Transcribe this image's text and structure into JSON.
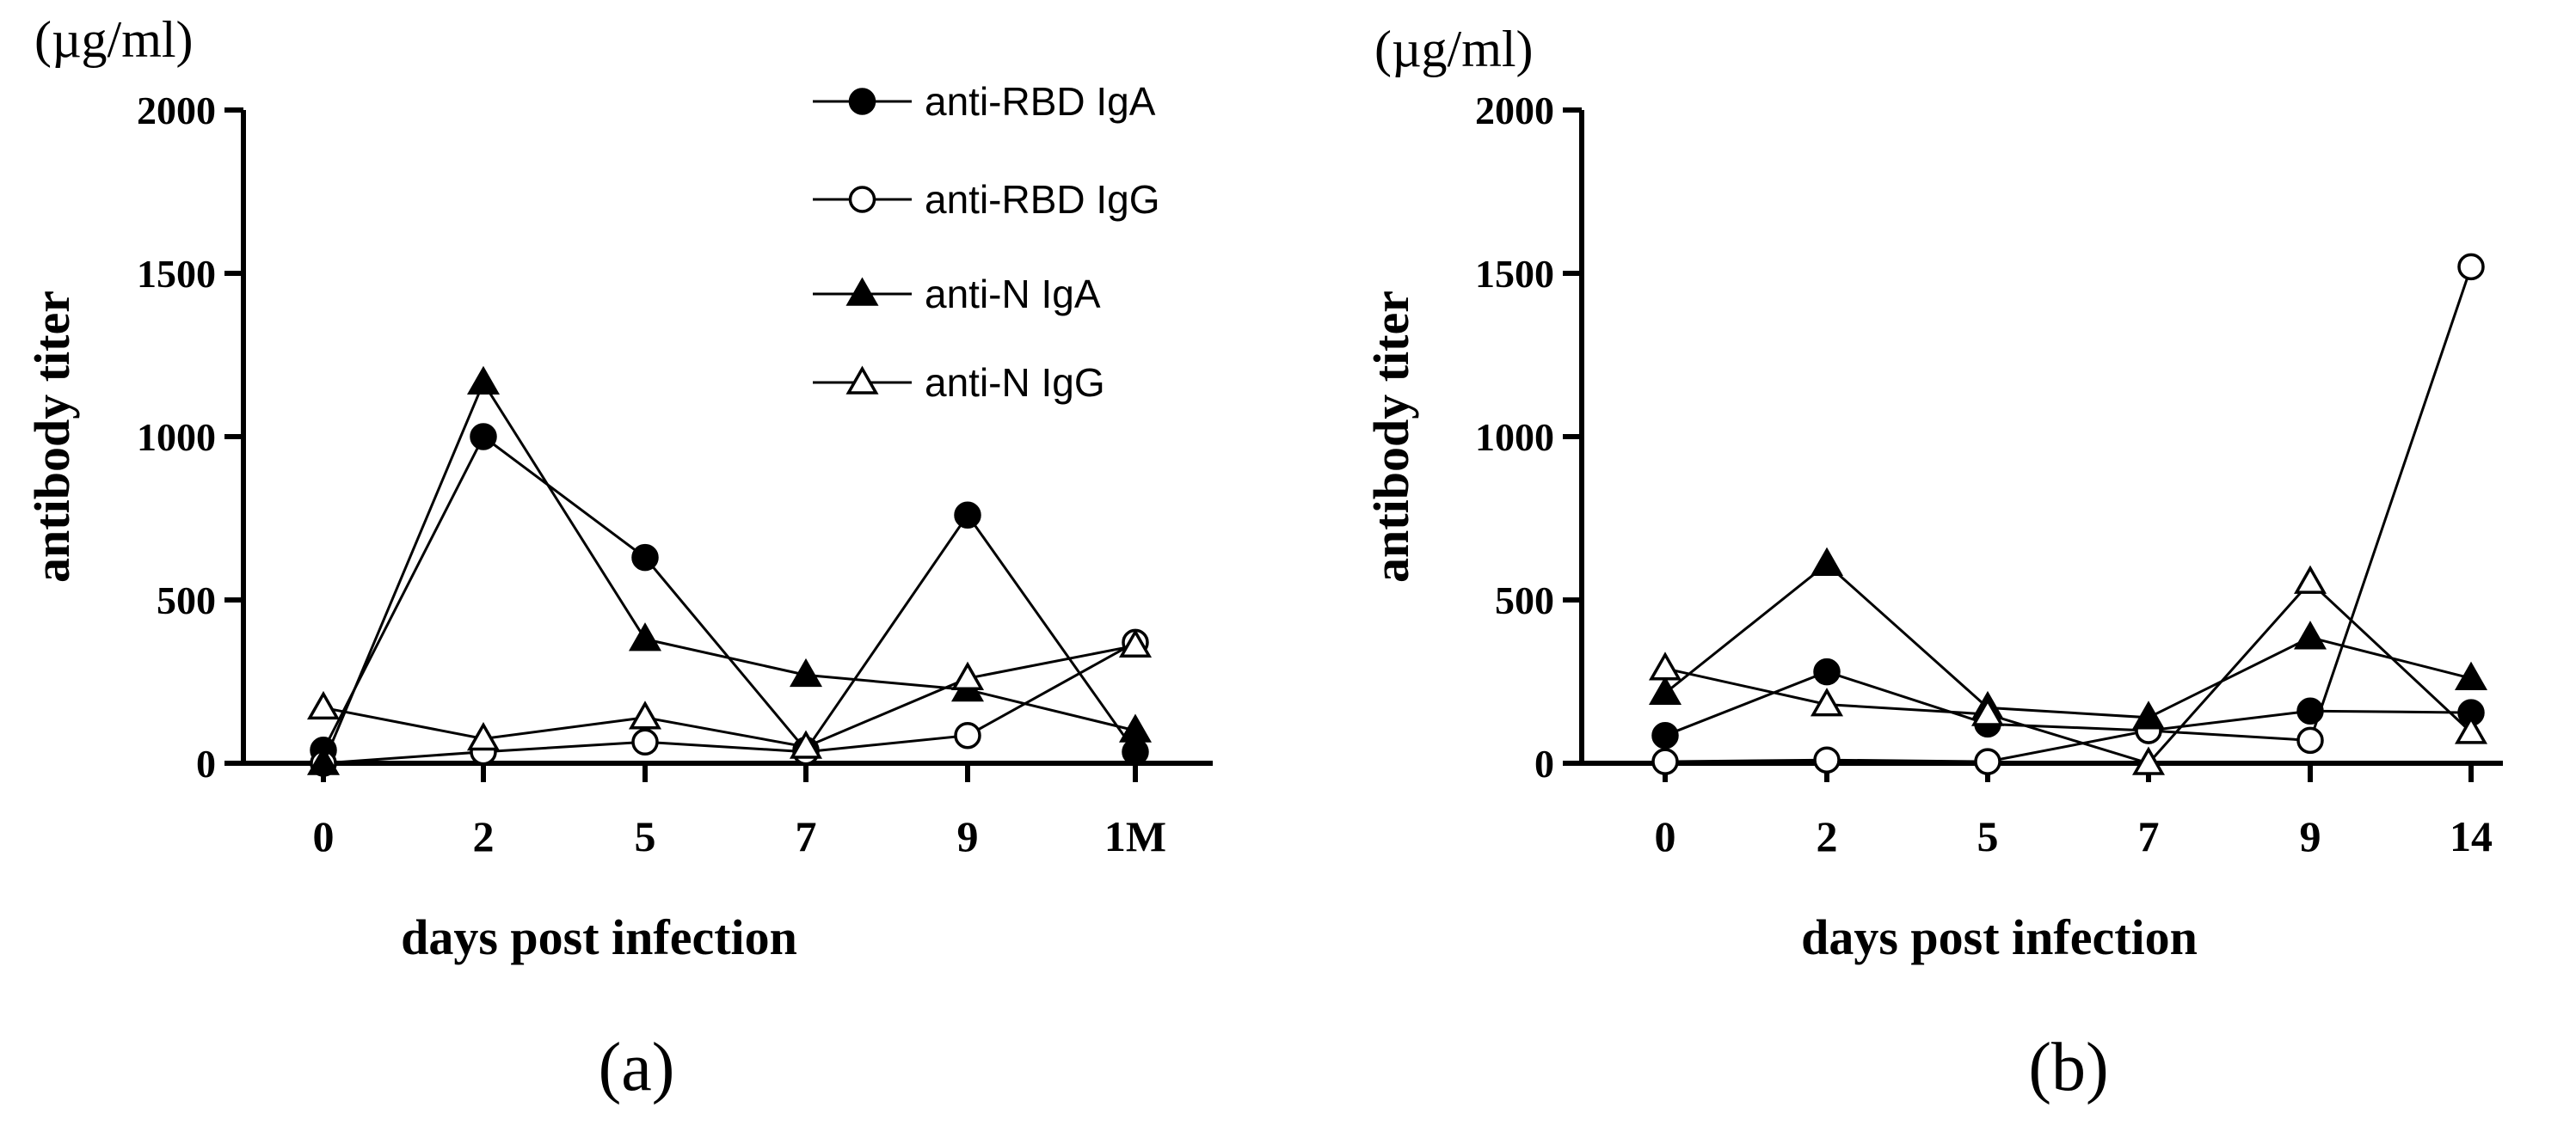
{
  "chart_data": [
    {
      "type": "line",
      "panel_label": "(a)",
      "unit_label": "(µg/ml)",
      "ylabel": "antibody titer",
      "xlabel": "days post infection",
      "categories": [
        "0",
        "2",
        "5",
        "7",
        "9",
        "1M"
      ],
      "ylim": [
        0,
        2000
      ],
      "yticks": [
        "0",
        "500",
        "1000",
        "1500",
        "2000"
      ],
      "legend_position": "top-right",
      "series": [
        {
          "name": "anti-RBD IgA",
          "marker": "circle-filled",
          "values": [
            40,
            1000,
            630,
            40,
            760,
            35
          ]
        },
        {
          "name": "anti-RBD IgG",
          "marker": "circle-open",
          "values": [
            0,
            35,
            65,
            35,
            85,
            370
          ]
        },
        {
          "name": "anti-N IgA",
          "marker": "triangle-filled",
          "values": [
            0,
            1165,
            380,
            270,
            225,
            100
          ]
        },
        {
          "name": "anti-N IgG",
          "marker": "triangle-open",
          "values": [
            170,
            75,
            140,
            50,
            260,
            360
          ]
        }
      ]
    },
    {
      "type": "line",
      "panel_label": "(b)",
      "unit_label": "(µg/ml)",
      "ylabel": "antibody titer",
      "xlabel": "days post infection",
      "categories": [
        "0",
        "2",
        "5",
        "7",
        "9",
        "14"
      ],
      "ylim": [
        0,
        2000
      ],
      "yticks": [
        "0",
        "500",
        "1000",
        "1500",
        "2000"
      ],
      "series": [
        {
          "name": "anti-RBD IgA",
          "marker": "circle-filled",
          "values": [
            85,
            280,
            120,
            100,
            160,
            155
          ]
        },
        {
          "name": "anti-RBD IgG",
          "marker": "circle-open",
          "values": [
            5,
            10,
            5,
            100,
            70,
            1520
          ]
        },
        {
          "name": "anti-N IgA",
          "marker": "triangle-filled",
          "values": [
            215,
            610,
            170,
            140,
            385,
            260
          ]
        },
        {
          "name": "anti-N IgG",
          "marker": "triangle-open",
          "values": [
            290,
            180,
            150,
            0,
            555,
            95
          ]
        }
      ]
    }
  ]
}
